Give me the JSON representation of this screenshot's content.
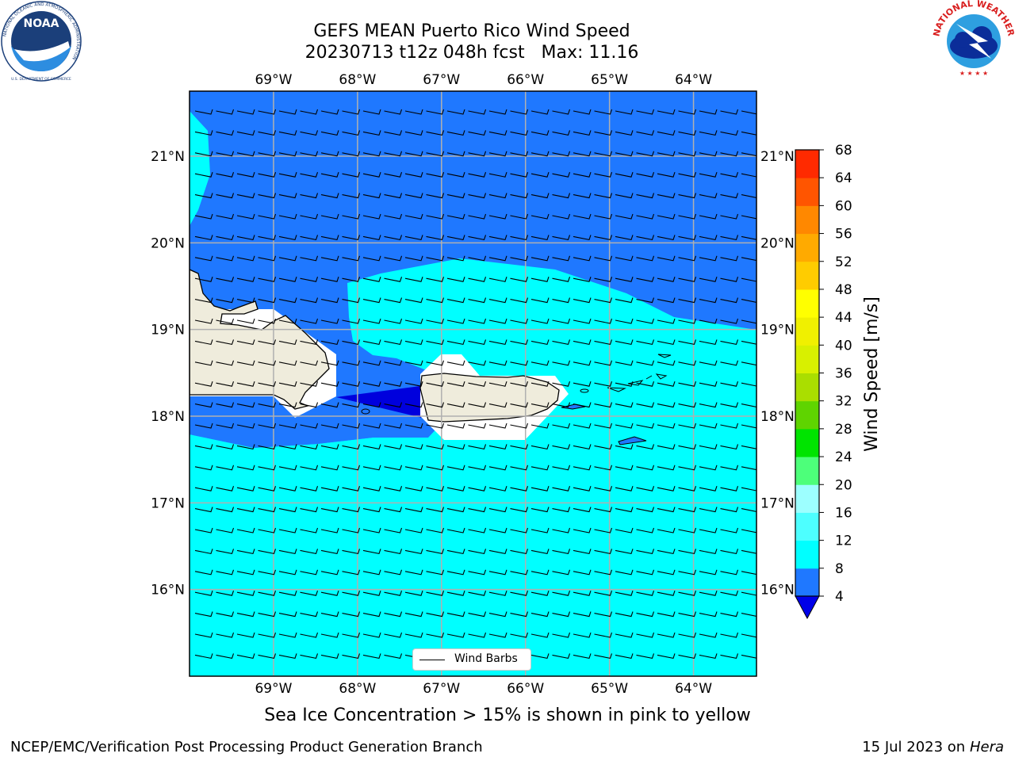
{
  "title": {
    "line1": "GEFS MEAN Puerto Rico Wind Speed",
    "line2": "20230713 t12z 048h fcst   Max: 11.16"
  },
  "subtitle": "Sea Ice Concentration > 15% is shown in pink to yellow",
  "footer": {
    "left": "NCEP/EMC/Verification Post Processing Product Generation Branch",
    "right_date": "15 Jul 2023 on ",
    "right_machine": "Hera"
  },
  "map": {
    "lon_ticks": [
      "69°W",
      "68°W",
      "67°W",
      "66°W",
      "65°W",
      "64°W"
    ],
    "lat_ticks": [
      "21°N",
      "20°N",
      "19°N",
      "18°N",
      "17°N",
      "16°N"
    ],
    "lon_values": [
      -69,
      -68,
      -67,
      -66,
      -65,
      -64
    ],
    "lat_values": [
      21,
      20,
      19,
      18,
      17,
      16
    ],
    "extent": {
      "lon_min": -70,
      "lon_max": -63.25,
      "lat_min": 15,
      "lat_max": 21.75
    },
    "legend_label": "Wind Barbs",
    "colors": {
      "ocean_low": "#1f78ff",
      "ocean_mid": "#00ffff",
      "calm": "#0000dd",
      "land": "#efecdc"
    }
  },
  "colorbar": {
    "label": "Wind Speed [m/s]",
    "ticks": [
      "68",
      "64",
      "60",
      "56",
      "52",
      "48",
      "44",
      "40",
      "36",
      "32",
      "28",
      "24",
      "20",
      "16",
      "12",
      "8",
      "4"
    ],
    "colors": [
      "#0000e8",
      "#1f78ff",
      "#00ffff",
      "#4dffff",
      "#9dffff",
      "#4dff7a",
      "#00e400",
      "#5fd400",
      "#aade00",
      "#d8f000",
      "#f0f000",
      "#ffff00",
      "#ffcc00",
      "#ffaa00",
      "#ff8800",
      "#ff5500",
      "#ff2a00",
      "#ff0000"
    ]
  },
  "logos": {
    "noaa": {
      "center": "NOAA",
      "ring": "NATIONAL OCEANIC AND ATMOSPHERIC ADMINISTRATION",
      "bottom": "U.S. DEPARTMENT OF COMMERCE"
    },
    "nws": {
      "ring": "NATIONAL WEATHER SERVICE"
    }
  }
}
